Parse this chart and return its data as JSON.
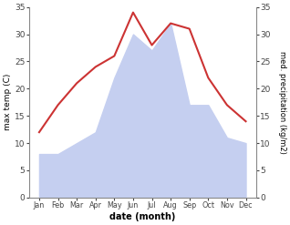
{
  "months": [
    "Jan",
    "Feb",
    "Mar",
    "Apr",
    "May",
    "Jun",
    "Jul",
    "Aug",
    "Sep",
    "Oct",
    "Nov",
    "Dec"
  ],
  "temperature": [
    12,
    17,
    21,
    24,
    26,
    34,
    28,
    32,
    31,
    22,
    17,
    14
  ],
  "precipitation": [
    8,
    8,
    10,
    12,
    22,
    30,
    27,
    32,
    17,
    17,
    11,
    10
  ],
  "temp_color": "#cc3333",
  "precip_color": "#c5cff0",
  "background_color": "#ffffff",
  "ylabel_left": "max temp (C)",
  "ylabel_right": "med. precipitation (kg/m2)",
  "xlabel": "date (month)",
  "ylim_left": [
    0,
    35
  ],
  "ylim_right": [
    0,
    35
  ],
  "yticks_left": [
    0,
    5,
    10,
    15,
    20,
    25,
    30,
    35
  ],
  "yticks_right": [
    0,
    5,
    10,
    15,
    20,
    25,
    30,
    35
  ],
  "line_width": 1.5
}
